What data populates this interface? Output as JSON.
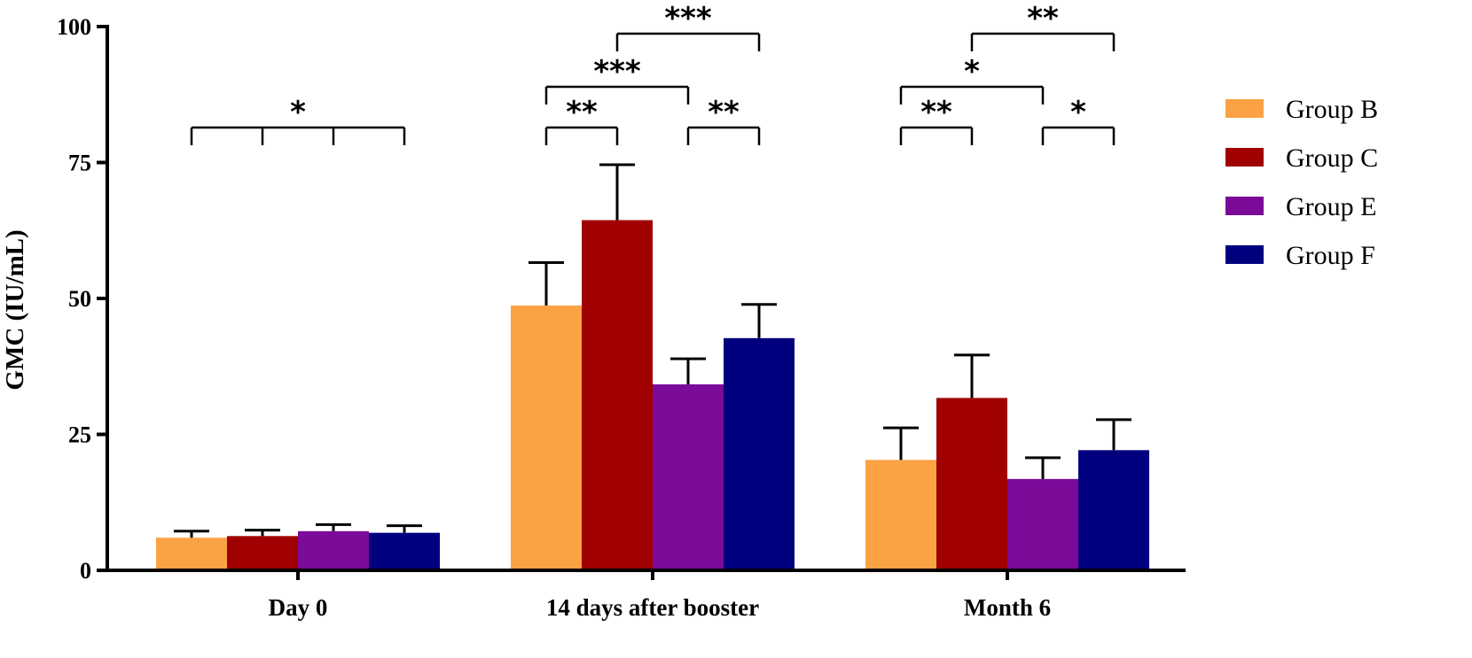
{
  "chart_data": {
    "type": "bar",
    "title": "",
    "xlabel": "",
    "ylabel": "GMC (IU/mL)",
    "ylim": [
      0,
      100
    ],
    "yticks": [
      0,
      25,
      50,
      75,
      100
    ],
    "grid": false,
    "legend_position": "right",
    "categories": [
      "Day 0",
      "14 days after booster",
      "Month 6"
    ],
    "series": [
      {
        "name": "Group B",
        "color": "#FBA244",
        "values": [
          6.0,
          48.7,
          20.3
        ],
        "error_upper": [
          7.2,
          56.6,
          26.2
        ]
      },
      {
        "name": "Group C",
        "color": "#A00000",
        "values": [
          6.3,
          64.4,
          31.7
        ],
        "error_upper": [
          7.4,
          74.6,
          39.6
        ]
      },
      {
        "name": "Group E",
        "color": "#7B0A99",
        "values": [
          7.2,
          34.2,
          16.8
        ],
        "error_upper": [
          8.4,
          38.9,
          20.7
        ]
      },
      {
        "name": "Group F",
        "color": "#00007F",
        "values": [
          6.9,
          42.7,
          22.1
        ],
        "error_upper": [
          8.2,
          48.9,
          27.7
        ]
      }
    ],
    "significance": [
      {
        "category": 0,
        "from": 0,
        "to": 3,
        "ticks": [
          0,
          1,
          2,
          3
        ],
        "level": 0,
        "label": "*"
      },
      {
        "category": 1,
        "from": 0,
        "to": 1,
        "ticks": [
          0,
          1
        ],
        "level": 0,
        "label": "**"
      },
      {
        "category": 1,
        "from": 2,
        "to": 3,
        "ticks": [
          2,
          3
        ],
        "level": 0,
        "label": "**"
      },
      {
        "category": 1,
        "from": 0,
        "to": 2,
        "ticks": [
          0,
          2
        ],
        "level": 1,
        "label": "***"
      },
      {
        "category": 1,
        "from": 1,
        "to": 3,
        "ticks": [
          1,
          3
        ],
        "level": 2,
        "label": "***"
      },
      {
        "category": 2,
        "from": 0,
        "to": 1,
        "ticks": [
          0,
          1
        ],
        "level": 0,
        "label": "**"
      },
      {
        "category": 2,
        "from": 2,
        "to": 3,
        "ticks": [
          2,
          3
        ],
        "level": 0,
        "label": "*"
      },
      {
        "category": 2,
        "from": 0,
        "to": 2,
        "ticks": [
          0,
          2
        ],
        "level": 1,
        "label": "*"
      },
      {
        "category": 2,
        "from": 1,
        "to": 3,
        "ticks": [
          1,
          3
        ],
        "level": 2,
        "label": "**"
      }
    ]
  }
}
